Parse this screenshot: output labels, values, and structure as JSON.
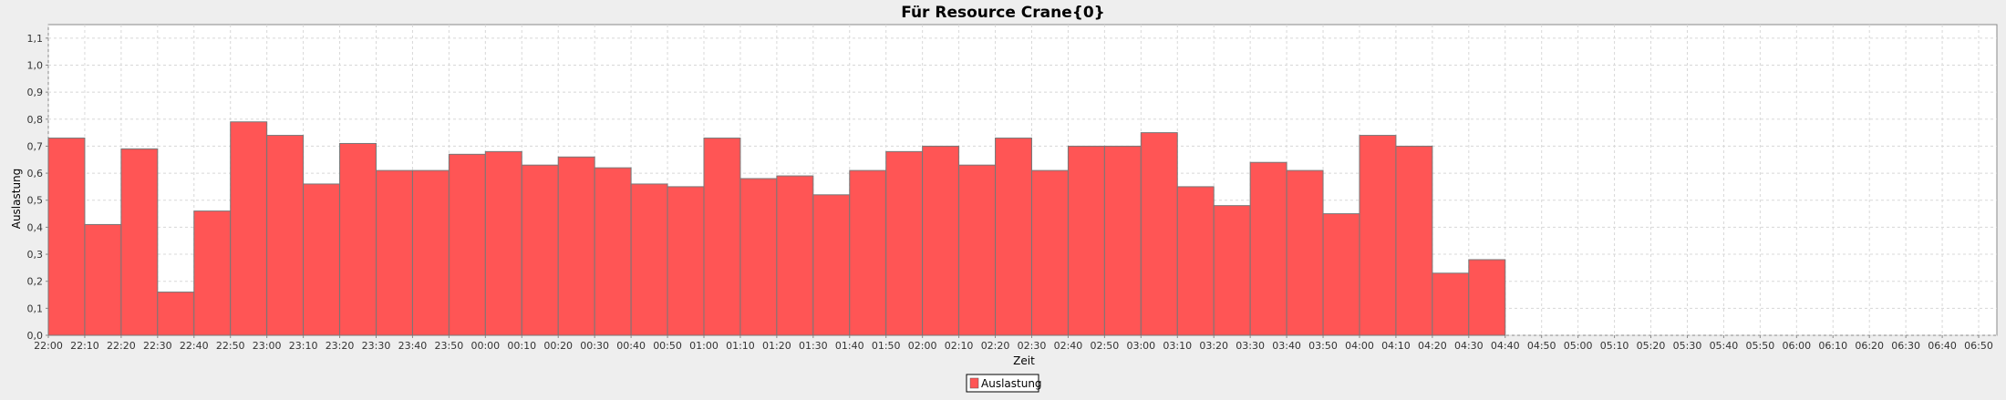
{
  "chart_data": {
    "type": "bar",
    "title": "Für Resource Crane{0}",
    "xlabel": "Zeit",
    "ylabel": "Auslastung",
    "ylim": [
      0,
      1.15
    ],
    "yticks": [
      "0,0",
      "0,1",
      "0,2",
      "0,3",
      "0,4",
      "0,5",
      "0,6",
      "0,7",
      "0,8",
      "0,9",
      "1,0",
      "1,1"
    ],
    "x_start": "22:00",
    "x_end": "06:55",
    "x_tick_labels": [
      "22:00",
      "22:10",
      "22:20",
      "22:30",
      "22:40",
      "22:50",
      "23:00",
      "23:10",
      "23:20",
      "23:30",
      "23:40",
      "23:50",
      "00:00",
      "00:10",
      "00:20",
      "00:30",
      "00:40",
      "00:50",
      "01:00",
      "01:10",
      "01:20",
      "01:30",
      "01:40",
      "01:50",
      "02:00",
      "02:10",
      "02:20",
      "02:30",
      "02:40",
      "02:50",
      "03:00",
      "03:10",
      "03:20",
      "03:30",
      "03:40",
      "03:50",
      "04:00",
      "04:10",
      "04:20",
      "04:30",
      "04:40",
      "04:50",
      "05:00",
      "05:10",
      "05:20",
      "05:30",
      "05:40",
      "05:50",
      "06:00",
      "06:10",
      "06:20",
      "06:30",
      "06:40",
      "06:50"
    ],
    "series": [
      {
        "name": "Auslastung",
        "color": "#ff5555",
        "categories": [
          "22:00",
          "22:10",
          "22:20",
          "22:30",
          "22:40",
          "22:50",
          "23:00",
          "23:10",
          "23:20",
          "23:30",
          "23:40",
          "23:50",
          "00:00",
          "00:10",
          "00:20",
          "00:30",
          "00:40",
          "00:50",
          "01:00",
          "01:10",
          "01:20",
          "01:30",
          "01:40",
          "01:50",
          "02:00",
          "02:10",
          "02:20",
          "02:30",
          "02:40",
          "02:50",
          "03:00",
          "03:10",
          "03:20",
          "03:30",
          "03:40",
          "03:50",
          "04:00",
          "04:10",
          "04:20",
          "04:30"
        ],
        "values": [
          0.73,
          0.41,
          0.69,
          0.16,
          0.46,
          0.79,
          0.74,
          0.56,
          0.71,
          0.61,
          0.61,
          0.67,
          0.68,
          0.63,
          0.66,
          0.62,
          0.56,
          0.55,
          0.73,
          0.58,
          0.59,
          0.52,
          0.61,
          0.68,
          0.7,
          0.63,
          0.73,
          0.61,
          0.7,
          0.7,
          0.75,
          0.55,
          0.48,
          0.64,
          0.61,
          0.45,
          0.74,
          0.7,
          0.23,
          0.28
        ]
      }
    ],
    "grid": true,
    "legend": "bottom-center"
  }
}
